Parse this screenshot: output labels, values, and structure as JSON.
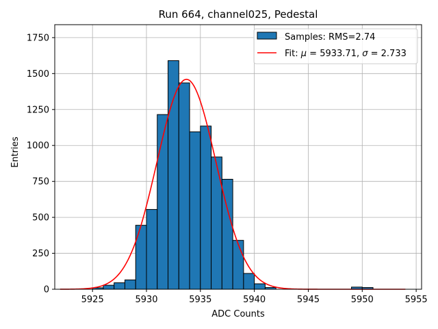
{
  "chart_data": {
    "type": "bar",
    "title": "Run 664, channel025, Pedestal",
    "xlabel": "ADC Counts",
    "ylabel": "Entries",
    "xlim": [
      5921.5,
      5955.5
    ],
    "ylim": [
      0,
      1840
    ],
    "grid": true,
    "legend_position": "top-right",
    "x_ticks": [
      5925,
      5930,
      5935,
      5940,
      5945,
      5950,
      5955
    ],
    "y_ticks": [
      0,
      250,
      500,
      750,
      1000,
      1250,
      1500,
      1750
    ],
    "x_tick_labels": [
      "5925",
      "5930",
      "5935",
      "5940",
      "5945",
      "5950",
      "5955"
    ],
    "y_tick_labels": [
      "0",
      "250",
      "500",
      "750",
      "1000",
      "1250",
      "1500",
      "1750"
    ],
    "histogram": {
      "name": "Samples: RMS=2.74",
      "color": "#1f77b4",
      "edge_color": "#000000",
      "bins": [
        {
          "x0": 5925,
          "x1": 5926,
          "count": 10
        },
        {
          "x0": 5926,
          "x1": 5927,
          "count": 28
        },
        {
          "x0": 5927,
          "x1": 5928,
          "count": 45
        },
        {
          "x0": 5928,
          "x1": 5929,
          "count": 65
        },
        {
          "x0": 5929,
          "x1": 5930,
          "count": 445
        },
        {
          "x0": 5930,
          "x1": 5931,
          "count": 555
        },
        {
          "x0": 5931,
          "x1": 5932,
          "count": 1215
        },
        {
          "x0": 5932,
          "x1": 5933,
          "count": 1590
        },
        {
          "x0": 5933,
          "x1": 5934,
          "count": 1435
        },
        {
          "x0": 5934,
          "x1": 5935,
          "count": 1095
        },
        {
          "x0": 5935,
          "x1": 5936,
          "count": 1135
        },
        {
          "x0": 5936,
          "x1": 5937,
          "count": 920
        },
        {
          "x0": 5937,
          "x1": 5938,
          "count": 765
        },
        {
          "x0": 5938,
          "x1": 5939,
          "count": 340
        },
        {
          "x0": 5939,
          "x1": 5940,
          "count": 110
        },
        {
          "x0": 5940,
          "x1": 5941,
          "count": 38
        },
        {
          "x0": 5941,
          "x1": 5942,
          "count": 12
        },
        {
          "x0": 5949,
          "x1": 5950,
          "count": 15
        },
        {
          "x0": 5950,
          "x1": 5951,
          "count": 12
        }
      ]
    },
    "fit": {
      "name": "Fit: μ = 5933.71, σ = 2.733",
      "label_prefix": "Fit: ",
      "mu_symbol": "μ",
      "mu_text": " = 5933.71, ",
      "sigma_symbol": "σ",
      "sigma_text": " = 2.733",
      "color": "#ff0000",
      "mu": 5933.71,
      "sigma": 2.733,
      "amplitude": 1460,
      "x_range": [
        5922,
        5954
      ]
    }
  }
}
